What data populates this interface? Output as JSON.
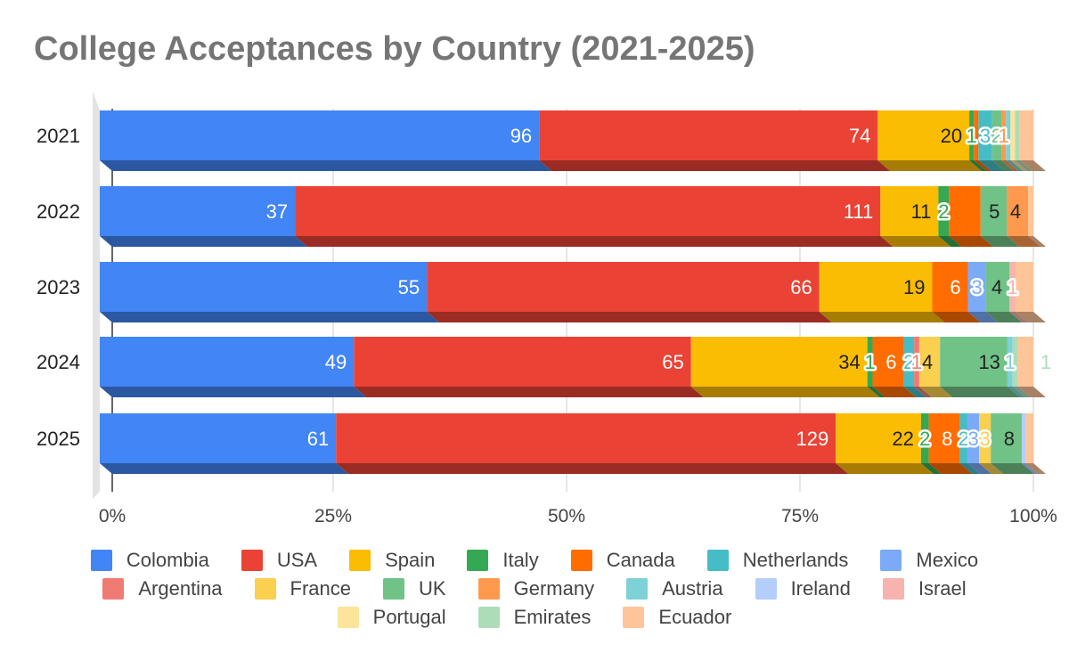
{
  "chart_data": {
    "type": "bar",
    "orientation": "horizontal",
    "stacked": "percent",
    "title": "College Acceptances by Country (2021-2025)",
    "xlabel": "",
    "ylabel": "",
    "categories": [
      "2021",
      "2022",
      "2023",
      "2024",
      "2025"
    ],
    "xlim": [
      0,
      100
    ],
    "x_ticks": [
      "0%",
      "25%",
      "50%",
      "75%",
      "100%"
    ],
    "grid": true,
    "legend_position": "bottom",
    "series": [
      {
        "name": "Colombia",
        "color": "#4285F4",
        "values": [
          96,
          37,
          55,
          49,
          61
        ]
      },
      {
        "name": "USA",
        "color": "#EA4335",
        "values": [
          74,
          111,
          66,
          65,
          129
        ]
      },
      {
        "name": "Spain",
        "color": "#FBBC04",
        "values": [
          20,
          11,
          19,
          34,
          22
        ]
      },
      {
        "name": "Italy",
        "color": "#34A853",
        "values": [
          1,
          2,
          0,
          1,
          2
        ]
      },
      {
        "name": "Canada",
        "color": "#FF6D01",
        "values": [
          1,
          6,
          6,
          6,
          8
        ]
      },
      {
        "name": "Netherlands",
        "color": "#46BDC6",
        "values": [
          3,
          0,
          0,
          2,
          2
        ]
      },
      {
        "name": "Mexico",
        "color": "#7BAAF7",
        "values": [
          0,
          0,
          3,
          0,
          3
        ]
      },
      {
        "name": "Argentina",
        "color": "#F07B72",
        "values": [
          0,
          0,
          0,
          1,
          0
        ]
      },
      {
        "name": "France",
        "color": "#FCD04F",
        "values": [
          0,
          0,
          0,
          4,
          3
        ]
      },
      {
        "name": "UK",
        "color": "#71C287",
        "values": [
          2,
          5,
          4,
          13,
          8
        ]
      },
      {
        "name": "Germany",
        "color": "#FF994D",
        "values": [
          1,
          4,
          0,
          0,
          0
        ]
      },
      {
        "name": "Austria",
        "color": "#7ED1D7",
        "values": [
          1,
          0,
          0,
          1,
          0
        ]
      },
      {
        "name": "Ireland",
        "color": "#B3CEFB",
        "values": [
          0,
          0,
          0,
          0,
          1
        ]
      },
      {
        "name": "Israel",
        "color": "#F7B4AE",
        "values": [
          0,
          0,
          1,
          0,
          0
        ]
      },
      {
        "name": "Portugal",
        "color": "#FDE49B",
        "values": [
          1,
          0,
          0,
          0,
          0
        ]
      },
      {
        "name": "Emirates",
        "color": "#ADDCB9",
        "values": [
          1,
          0,
          0,
          1,
          0
        ]
      },
      {
        "name": "Ecuador",
        "color": "#FFC599",
        "values": [
          3,
          1,
          3,
          3,
          2
        ]
      }
    ],
    "data_labels": [
      [
        {
          "series": "Colombia",
          "text": "96"
        },
        {
          "series": "USA",
          "text": "74"
        },
        {
          "series": "Spain",
          "text": "20"
        },
        {
          "series": "Italy",
          "text": "1"
        },
        {
          "series": "Netherlands",
          "text": "3"
        },
        {
          "series": "UK",
          "text": "2"
        },
        {
          "series": "Germany",
          "text": "1"
        }
      ],
      [
        {
          "series": "Colombia",
          "text": "37"
        },
        {
          "series": "USA",
          "text": "111"
        },
        {
          "series": "Spain",
          "text": "11"
        },
        {
          "series": "Italy",
          "text": "2"
        },
        {
          "series": "Germany",
          "text": "4"
        },
        {
          "series": "UK",
          "text": "5"
        }
      ],
      [
        {
          "series": "Colombia",
          "text": "55"
        },
        {
          "series": "USA",
          "text": "66"
        },
        {
          "series": "Spain",
          "text": "19"
        },
        {
          "series": "Canada",
          "text": "6"
        },
        {
          "series": "Mexico",
          "text": "3"
        },
        {
          "series": "UK",
          "text": "4"
        },
        {
          "series": "Israel",
          "text": "1"
        }
      ],
      [
        {
          "series": "Colombia",
          "text": "49"
        },
        {
          "series": "USA",
          "text": "65"
        },
        {
          "series": "Spain",
          "text": "34"
        },
        {
          "series": "Italy",
          "text": "1"
        },
        {
          "series": "Canada",
          "text": "6"
        },
        {
          "series": "Netherlands",
          "text": "2"
        },
        {
          "series": "Argentina",
          "text": "1"
        },
        {
          "series": "France",
          "text": "4"
        },
        {
          "series": "UK",
          "text": "13"
        },
        {
          "series": "Austria",
          "text": "1"
        },
        {
          "series": "Emirates",
          "text": "1"
        }
      ],
      [
        {
          "series": "Colombia",
          "text": "61"
        },
        {
          "series": "USA",
          "text": "129"
        },
        {
          "series": "Spain",
          "text": "22"
        },
        {
          "series": "Italy",
          "text": "2"
        },
        {
          "series": "Canada",
          "text": "8"
        },
        {
          "series": "Netherlands",
          "text": "2"
        },
        {
          "series": "Mexico",
          "text": "3"
        },
        {
          "series": "France",
          "text": "3"
        },
        {
          "series": "UK",
          "text": "8"
        }
      ]
    ]
  }
}
